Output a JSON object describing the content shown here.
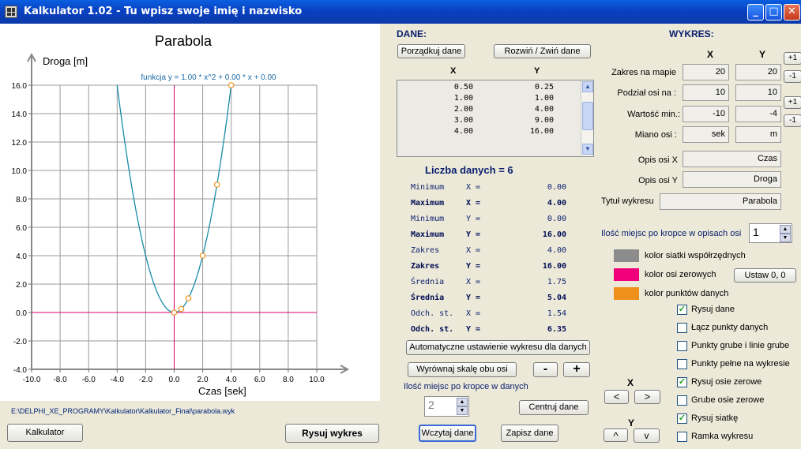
{
  "window": {
    "title": "Kalkulator 1.02 - Tu wpisz swoje imię i nazwisko",
    "min_glyph": "_",
    "max_glyph": "□",
    "close_glyph": "✕"
  },
  "chart_data": {
    "type": "scatter",
    "title": "Parabola",
    "xlabel": "Czas [sek]",
    "ylabel": "Droga [m]",
    "function_label": "funkcja  y = 1.00 * x^2 + 0.00 * x + 0.00",
    "xlim": [
      -10,
      10
    ],
    "ylim": [
      -4,
      16
    ],
    "x_ticks": [
      "-10.0",
      "-8.0",
      "-6.0",
      "-4.0",
      "-2.0",
      "0.0",
      "2.0",
      "4.0",
      "6.0",
      "8.0",
      "10.0"
    ],
    "y_ticks": [
      "-4.0",
      "-2.0",
      "0.0",
      "2.0",
      "4.0",
      "6.0",
      "8.0",
      "10.0",
      "12.0",
      "14.0",
      "16.0"
    ],
    "grid": true,
    "points": [
      {
        "x": 0.0,
        "y": 0.0
      },
      {
        "x": 0.5,
        "y": 0.25
      },
      {
        "x": 1.0,
        "y": 1.0
      },
      {
        "x": 2.0,
        "y": 4.0
      },
      {
        "x": 3.0,
        "y": 9.0
      },
      {
        "x": 4.0,
        "y": 16.0
      }
    ],
    "curve": {
      "a": 1.0,
      "b": 0.0,
      "c": 0.0
    },
    "colors": {
      "grid": "#9a9a9a",
      "zero_axis": "#d6006e",
      "points": "#f0901c",
      "curve": "#178ca8",
      "function_label": "#1a6ba8"
    }
  },
  "file_path": "E:\\DELPHI_XE_PROGRAMY\\Kalkulator\\Kalkulator_Final\\parabola.wyk",
  "bottom_buttons": {
    "kalkulator": "Kalkulator",
    "rysuj": "Rysuj wykres"
  },
  "dane": {
    "header": "DANE:",
    "porzadkuj": "Porządkuj dane",
    "rozwin": "Rozwiń / Zwiń  dane",
    "col_x": "X",
    "col_y": "Y",
    "rows": [
      {
        "x": "0.50",
        "y": "0.25"
      },
      {
        "x": "1.00",
        "y": "1.00"
      },
      {
        "x": "2.00",
        "y": "4.00"
      },
      {
        "x": "3.00",
        "y": "9.00"
      },
      {
        "x": "4.00",
        "y": "16.00"
      }
    ],
    "count_label": "Liczba danych = 6",
    "stats": [
      {
        "name": "Minimum",
        "axis": "X =",
        "value": "0.00",
        "bold": false
      },
      {
        "name": "Maximum",
        "axis": "X =",
        "value": "4.00",
        "bold": true
      },
      {
        "name": "Minimum",
        "axis": "Y =",
        "value": "0.00",
        "bold": false
      },
      {
        "name": "Maximum",
        "axis": "Y =",
        "value": "16.00",
        "bold": true
      },
      {
        "name": "Zakres",
        "axis": "X =",
        "value": "4.00",
        "bold": false
      },
      {
        "name": "Zakres",
        "axis": "Y =",
        "value": "16.00",
        "bold": true
      },
      {
        "name": "Średnia",
        "axis": "X =",
        "value": "1.75",
        "bold": false
      },
      {
        "name": "Średnia",
        "axis": "Y =",
        "value": "5.04",
        "bold": true
      },
      {
        "name": "Odch. st.",
        "axis": "X =",
        "value": "1.54",
        "bold": false
      },
      {
        "name": "Odch. st.",
        "axis": "Y =",
        "value": "6.35",
        "bold": true
      }
    ],
    "auto_btn": "Automatyczne ustawienie wykresu dla danych",
    "wyrownaj_btn": "Wyrównaj skalę obu osi",
    "minus_btn": "-",
    "plus_btn": "+",
    "decimals_label": "Ilość miejsc po kropce w danych",
    "decimals_value": "2",
    "centruj_btn": "Centruj dane",
    "wczytaj_btn": "Wczytaj dane",
    "zapisz_btn": "Zapisz dane"
  },
  "wykres": {
    "header": "WYKRES:",
    "col_x": "X",
    "col_y": "Y",
    "inc": "+1",
    "dec": "-1",
    "zakres_label": "Zakres na mapie",
    "zakres_x": "20",
    "zakres_y": "20",
    "podzial_label": "Podział osi na :",
    "podzial_x": "10",
    "podzial_y": "10",
    "wartosc_label": "Wartość min.:",
    "wartosc_x": "-10",
    "wartosc_y": "-4",
    "miano_label": "Miano osi :",
    "miano_x": "sek",
    "miano_y": "m",
    "opis_x_label": "Opis osi X",
    "opis_x": "Czas",
    "opis_y_label": "Opis osi Y",
    "opis_y": "Droga",
    "tytul_label": "Tytuł wykresu",
    "tytul": "Parabola",
    "decimals_label": "Ilość miejsc po kropce w opisach osi",
    "decimals_value": "1",
    "colors": [
      {
        "label": "kolor siatki współrzędnych",
        "color": "#8c8c8c"
      },
      {
        "label": "kolor osi zerowych",
        "color": "#f0007a"
      },
      {
        "label": "kolor punktów danych",
        "color": "#f0901c"
      }
    ],
    "ustaw_btn": "Ustaw 0, 0",
    "checks": [
      {
        "label": "Rysuj dane",
        "checked": true
      },
      {
        "label": "Łącz punkty danych",
        "checked": false
      },
      {
        "label": "Punkty grube i linie grube",
        "checked": false
      },
      {
        "label": "Punkty pełne na wykresie",
        "checked": false
      },
      {
        "label": "Rysuj osie zerowe",
        "checked": true
      },
      {
        "label": "Grube osie zerowe",
        "checked": false
      },
      {
        "label": "Rysuj siatkę",
        "checked": true
      },
      {
        "label": "Ramka wykresu",
        "checked": false
      }
    ],
    "move_x_label": "X",
    "move_y_label": "Y",
    "left": "<",
    "right": ">",
    "up": "^",
    "down": "v",
    "check_mark": "✓"
  }
}
